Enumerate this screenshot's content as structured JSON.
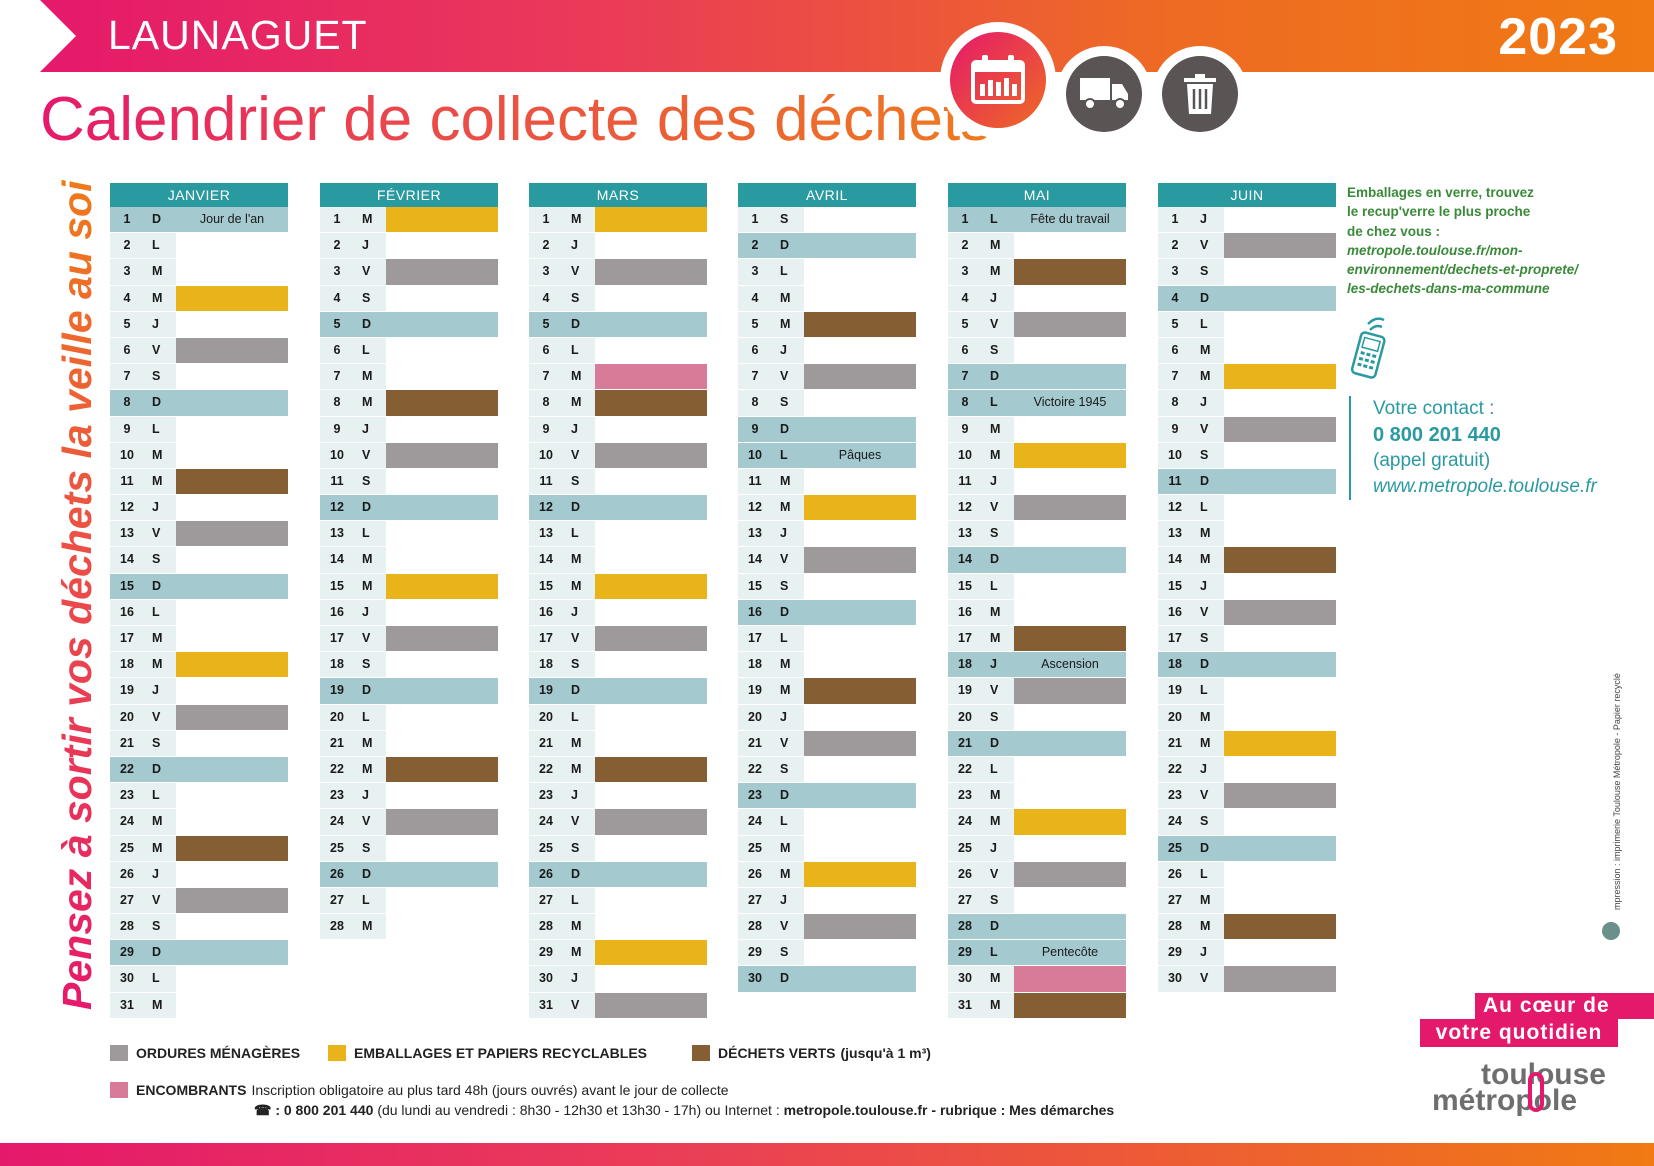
{
  "header": {
    "commune": "LAUNAGUET",
    "year": "2023",
    "title": "Calendrier de collecte des déchets"
  },
  "slogan": "Pensez à sortir vos déchets la veille au soir !",
  "colors": {
    "ordures": "#9e9a9b",
    "emballages": "#e9b41a",
    "dechets_verts": "#855e34",
    "encombrants": "#d87b98",
    "header": "#2a9aa1"
  },
  "months": [
    {
      "name": "JANVIER",
      "days": [
        {
          "n": "1",
          "l": "D",
          "label": "Jour de l'an"
        },
        {
          "n": "2",
          "l": "L"
        },
        {
          "n": "3",
          "l": "M"
        },
        {
          "n": "4",
          "l": "M",
          "type": "emb"
        },
        {
          "n": "5",
          "l": "J"
        },
        {
          "n": "6",
          "l": "V",
          "type": "om"
        },
        {
          "n": "7",
          "l": "S"
        },
        {
          "n": "8",
          "l": "D"
        },
        {
          "n": "9",
          "l": "L"
        },
        {
          "n": "10",
          "l": "M"
        },
        {
          "n": "11",
          "l": "M",
          "type": "dv"
        },
        {
          "n": "12",
          "l": "J"
        },
        {
          "n": "13",
          "l": "V",
          "type": "om"
        },
        {
          "n": "14",
          "l": "S"
        },
        {
          "n": "15",
          "l": "D"
        },
        {
          "n": "16",
          "l": "L"
        },
        {
          "n": "17",
          "l": "M"
        },
        {
          "n": "18",
          "l": "M",
          "type": "emb"
        },
        {
          "n": "19",
          "l": "J"
        },
        {
          "n": "20",
          "l": "V",
          "type": "om"
        },
        {
          "n": "21",
          "l": "S"
        },
        {
          "n": "22",
          "l": "D"
        },
        {
          "n": "23",
          "l": "L"
        },
        {
          "n": "24",
          "l": "M"
        },
        {
          "n": "25",
          "l": "M",
          "type": "dv"
        },
        {
          "n": "26",
          "l": "J"
        },
        {
          "n": "27",
          "l": "V",
          "type": "om"
        },
        {
          "n": "28",
          "l": "S"
        },
        {
          "n": "29",
          "l": "D"
        },
        {
          "n": "30",
          "l": "L"
        },
        {
          "n": "31",
          "l": "M"
        }
      ]
    },
    {
      "name": "FÉVRIER",
      "days": [
        {
          "n": "1",
          "l": "M",
          "type": "emb"
        },
        {
          "n": "2",
          "l": "J"
        },
        {
          "n": "3",
          "l": "V",
          "type": "om"
        },
        {
          "n": "4",
          "l": "S"
        },
        {
          "n": "5",
          "l": "D"
        },
        {
          "n": "6",
          "l": "L"
        },
        {
          "n": "7",
          "l": "M"
        },
        {
          "n": "8",
          "l": "M",
          "type": "dv"
        },
        {
          "n": "9",
          "l": "J"
        },
        {
          "n": "10",
          "l": "V",
          "type": "om"
        },
        {
          "n": "11",
          "l": "S"
        },
        {
          "n": "12",
          "l": "D"
        },
        {
          "n": "13",
          "l": "L"
        },
        {
          "n": "14",
          "l": "M"
        },
        {
          "n": "15",
          "l": "M",
          "type": "emb"
        },
        {
          "n": "16",
          "l": "J"
        },
        {
          "n": "17",
          "l": "V",
          "type": "om"
        },
        {
          "n": "18",
          "l": "S"
        },
        {
          "n": "19",
          "l": "D"
        },
        {
          "n": "20",
          "l": "L"
        },
        {
          "n": "21",
          "l": "M"
        },
        {
          "n": "22",
          "l": "M",
          "type": "dv"
        },
        {
          "n": "23",
          "l": "J"
        },
        {
          "n": "24",
          "l": "V",
          "type": "om"
        },
        {
          "n": "25",
          "l": "S"
        },
        {
          "n": "26",
          "l": "D"
        },
        {
          "n": "27",
          "l": "L"
        },
        {
          "n": "28",
          "l": "M"
        }
      ]
    },
    {
      "name": "MARS",
      "days": [
        {
          "n": "1",
          "l": "M",
          "type": "emb"
        },
        {
          "n": "2",
          "l": "J"
        },
        {
          "n": "3",
          "l": "V",
          "type": "om"
        },
        {
          "n": "4",
          "l": "S"
        },
        {
          "n": "5",
          "l": "D"
        },
        {
          "n": "6",
          "l": "L"
        },
        {
          "n": "7",
          "l": "M",
          "type": "enc"
        },
        {
          "n": "8",
          "l": "M",
          "type": "dv"
        },
        {
          "n": "9",
          "l": "J"
        },
        {
          "n": "10",
          "l": "V",
          "type": "om"
        },
        {
          "n": "11",
          "l": "S"
        },
        {
          "n": "12",
          "l": "D"
        },
        {
          "n": "13",
          "l": "L"
        },
        {
          "n": "14",
          "l": "M"
        },
        {
          "n": "15",
          "l": "M",
          "type": "emb"
        },
        {
          "n": "16",
          "l": "J"
        },
        {
          "n": "17",
          "l": "V",
          "type": "om"
        },
        {
          "n": "18",
          "l": "S"
        },
        {
          "n": "19",
          "l": "D"
        },
        {
          "n": "20",
          "l": "L"
        },
        {
          "n": "21",
          "l": "M"
        },
        {
          "n": "22",
          "l": "M",
          "type": "dv"
        },
        {
          "n": "23",
          "l": "J"
        },
        {
          "n": "24",
          "l": "V",
          "type": "om"
        },
        {
          "n": "25",
          "l": "S"
        },
        {
          "n": "26",
          "l": "D"
        },
        {
          "n": "27",
          "l": "L"
        },
        {
          "n": "28",
          "l": "M"
        },
        {
          "n": "29",
          "l": "M",
          "type": "emb"
        },
        {
          "n": "30",
          "l": "J"
        },
        {
          "n": "31",
          "l": "V",
          "type": "om"
        }
      ]
    },
    {
      "name": "AVRIL",
      "days": [
        {
          "n": "1",
          "l": "S"
        },
        {
          "n": "2",
          "l": "D"
        },
        {
          "n": "3",
          "l": "L"
        },
        {
          "n": "4",
          "l": "M"
        },
        {
          "n": "5",
          "l": "M",
          "type": "dv"
        },
        {
          "n": "6",
          "l": "J"
        },
        {
          "n": "7",
          "l": "V",
          "type": "om"
        },
        {
          "n": "8",
          "l": "S"
        },
        {
          "n": "9",
          "l": "D"
        },
        {
          "n": "10",
          "l": "L",
          "label": "Pâques",
          "sun": true
        },
        {
          "n": "11",
          "l": "M"
        },
        {
          "n": "12",
          "l": "M",
          "type": "emb"
        },
        {
          "n": "13",
          "l": "J"
        },
        {
          "n": "14",
          "l": "V",
          "type": "om"
        },
        {
          "n": "15",
          "l": "S"
        },
        {
          "n": "16",
          "l": "D"
        },
        {
          "n": "17",
          "l": "L"
        },
        {
          "n": "18",
          "l": "M"
        },
        {
          "n": "19",
          "l": "M",
          "type": "dv"
        },
        {
          "n": "20",
          "l": "J"
        },
        {
          "n": "21",
          "l": "V",
          "type": "om"
        },
        {
          "n": "22",
          "l": "S"
        },
        {
          "n": "23",
          "l": "D"
        },
        {
          "n": "24",
          "l": "L"
        },
        {
          "n": "25",
          "l": "M"
        },
        {
          "n": "26",
          "l": "M",
          "type": "emb"
        },
        {
          "n": "27",
          "l": "J"
        },
        {
          "n": "28",
          "l": "V",
          "type": "om"
        },
        {
          "n": "29",
          "l": "S"
        },
        {
          "n": "30",
          "l": "D"
        }
      ]
    },
    {
      "name": "MAI",
      "days": [
        {
          "n": "1",
          "l": "L",
          "label": "Fête du travail",
          "sun": true
        },
        {
          "n": "2",
          "l": "M"
        },
        {
          "n": "3",
          "l": "M",
          "type": "dv"
        },
        {
          "n": "4",
          "l": "J"
        },
        {
          "n": "5",
          "l": "V",
          "type": "om"
        },
        {
          "n": "6",
          "l": "S"
        },
        {
          "n": "7",
          "l": "D"
        },
        {
          "n": "8",
          "l": "L",
          "label": "Victoire 1945",
          "sun": true
        },
        {
          "n": "9",
          "l": "M"
        },
        {
          "n": "10",
          "l": "M",
          "type": "emb"
        },
        {
          "n": "11",
          "l": "J"
        },
        {
          "n": "12",
          "l": "V",
          "type": "om"
        },
        {
          "n": "13",
          "l": "S"
        },
        {
          "n": "14",
          "l": "D"
        },
        {
          "n": "15",
          "l": "L"
        },
        {
          "n": "16",
          "l": "M"
        },
        {
          "n": "17",
          "l": "M",
          "type": "dv"
        },
        {
          "n": "18",
          "l": "J",
          "label": "Ascension",
          "sun": true
        },
        {
          "n": "19",
          "l": "V",
          "type": "om"
        },
        {
          "n": "20",
          "l": "S"
        },
        {
          "n": "21",
          "l": "D"
        },
        {
          "n": "22",
          "l": "L"
        },
        {
          "n": "23",
          "l": "M"
        },
        {
          "n": "24",
          "l": "M",
          "type": "emb"
        },
        {
          "n": "25",
          "l": "J"
        },
        {
          "n": "26",
          "l": "V",
          "type": "om"
        },
        {
          "n": "27",
          "l": "S"
        },
        {
          "n": "28",
          "l": "D"
        },
        {
          "n": "29",
          "l": "L",
          "label": "Pentecôte",
          "sun": true
        },
        {
          "n": "30",
          "l": "M",
          "type": "enc"
        },
        {
          "n": "31",
          "l": "M",
          "type": "dv"
        }
      ]
    },
    {
      "name": "JUIN",
      "days": [
        {
          "n": "1",
          "l": "J"
        },
        {
          "n": "2",
          "l": "V",
          "type": "om"
        },
        {
          "n": "3",
          "l": "S"
        },
        {
          "n": "4",
          "l": "D"
        },
        {
          "n": "5",
          "l": "L"
        },
        {
          "n": "6",
          "l": "M"
        },
        {
          "n": "7",
          "l": "M",
          "type": "emb"
        },
        {
          "n": "8",
          "l": "J"
        },
        {
          "n": "9",
          "l": "V",
          "type": "om"
        },
        {
          "n": "10",
          "l": "S"
        },
        {
          "n": "11",
          "l": "D"
        },
        {
          "n": "12",
          "l": "L"
        },
        {
          "n": "13",
          "l": "M"
        },
        {
          "n": "14",
          "l": "M",
          "type": "dv"
        },
        {
          "n": "15",
          "l": "J"
        },
        {
          "n": "16",
          "l": "V",
          "type": "om"
        },
        {
          "n": "17",
          "l": "S"
        },
        {
          "n": "18",
          "l": "D"
        },
        {
          "n": "19",
          "l": "L"
        },
        {
          "n": "20",
          "l": "M"
        },
        {
          "n": "21",
          "l": "M",
          "type": "emb"
        },
        {
          "n": "22",
          "l": "J"
        },
        {
          "n": "23",
          "l": "V",
          "type": "om"
        },
        {
          "n": "24",
          "l": "S"
        },
        {
          "n": "25",
          "l": "D"
        },
        {
          "n": "26",
          "l": "L"
        },
        {
          "n": "27",
          "l": "M"
        },
        {
          "n": "28",
          "l": "M",
          "type": "dv"
        },
        {
          "n": "29",
          "l": "J"
        },
        {
          "n": "30",
          "l": "V",
          "type": "om"
        }
      ]
    }
  ],
  "info": {
    "glass_line1": "Emballages en verre, trouvez",
    "glass_line2": "le recup'verre le plus proche",
    "glass_line3": "de chez vous :",
    "url_line1": "metropole.toulouse.fr/mon-",
    "url_line2": "environnement/dechets-et-proprete/",
    "url_line3": "les-dechets-dans-ma-commune"
  },
  "contact": {
    "label": "Votre contact :",
    "phone": "0 800 201 440",
    "free": "(appel gratuit)",
    "website": "www.metropole.toulouse.fr"
  },
  "imprint": "mpression : imprimerie Toulouse Métropole - Papier recyclé",
  "legend": {
    "ordures": "ORDURES MÉNAGÈRES",
    "emballages": "EMBALLAGES ET PAPIERS RECYCLABLES",
    "dechets_verts": "DÉCHETS VERTS",
    "dechets_verts_note": "(jusqu'à 1 m³)",
    "encombrants": "ENCOMBRANTS",
    "encombrants_note": "Inscription obligatoire au plus tard 48h (jours ouvrés) avant le jour de collecte",
    "phone_line_phone": "☎ : 0 800 201 440",
    "phone_line_hours": "(du lundi au vendredi : 8h30 - 12h30 et 13h30 - 17h) ou Internet :",
    "phone_line_web": "metropole.toulouse.fr - rubrique : Mes démarches"
  },
  "brand": {
    "tagline1": "Au cœur de",
    "tagline2": "votre quotidien",
    "logo_top": "toulouse",
    "logo_bottom": "métropole"
  }
}
